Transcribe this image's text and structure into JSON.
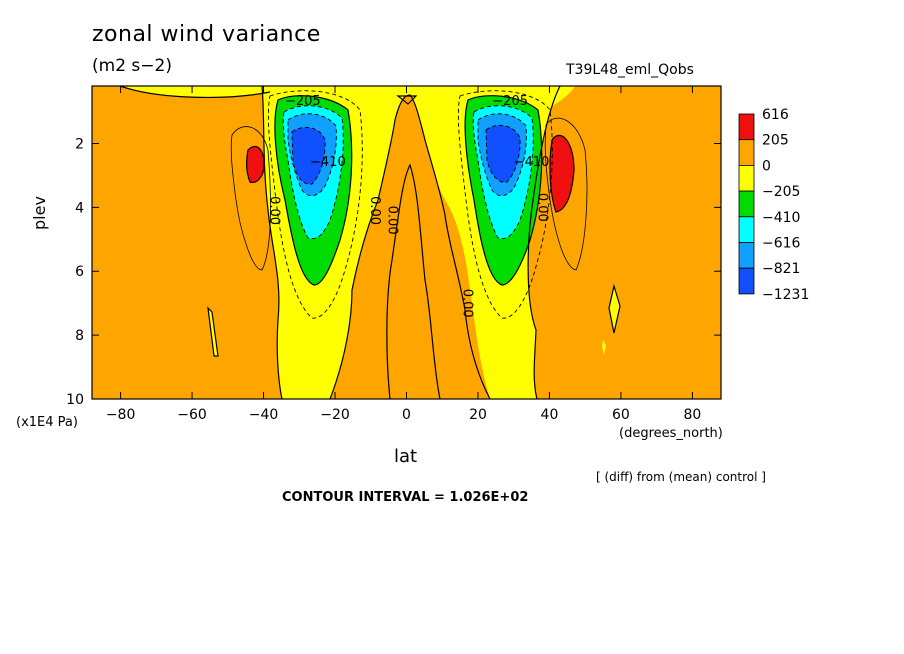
{
  "title": "zonal wind variance",
  "units": "(m2 s−2)",
  "run_label": "T39L48_eml_Qobs",
  "diff_note": "[ (diff) from (mean) control ]",
  "contour_interval": "CONTOUR INTERVAL = 1.026E+02",
  "chart_data": {
    "type": "heatmap",
    "xlabel": "lat",
    "xunit": "(degrees_north)",
    "ylabel": "plev",
    "yunit": "(x1E4 Pa)",
    "xlim": [
      -88,
      88
    ],
    "ylim": [
      0.2,
      10
    ],
    "y_inverted": true,
    "xticks": [
      -80,
      -60,
      -40,
      -20,
      0,
      20,
      40,
      60,
      80
    ],
    "yticks": [
      2,
      4,
      6,
      8,
      10
    ],
    "colorbar": {
      "levels": [
        "616",
        "205",
        "0",
        "−205",
        "−410",
        "−616",
        "−821",
        "−1231"
      ],
      "colors": [
        "#f01010",
        "#ffa500",
        "#ffff00",
        "#00dc00",
        "#00ffff",
        "#10a0ff",
        "#1050ff"
      ]
    },
    "contour_labels": [
      {
        "text": "−205",
        "x": -29,
        "y": 0.8
      },
      {
        "text": "−205",
        "x": 29,
        "y": 0.8
      },
      {
        "text": "−410",
        "x": -22,
        "y": 2.7
      },
      {
        "text": "−410",
        "x": 35,
        "y": 2.7
      },
      {
        "text": "0.00",
        "x": -38,
        "y": 4.1
      },
      {
        "text": "0.00",
        "x": -10,
        "y": 4.1
      },
      {
        "text": "0.00",
        "x": -5,
        "y": 4.4
      },
      {
        "text": "0.00",
        "x": 16,
        "y": 7.0
      },
      {
        "text": "0.00",
        "x": 37,
        "y": 4.0
      }
    ]
  }
}
